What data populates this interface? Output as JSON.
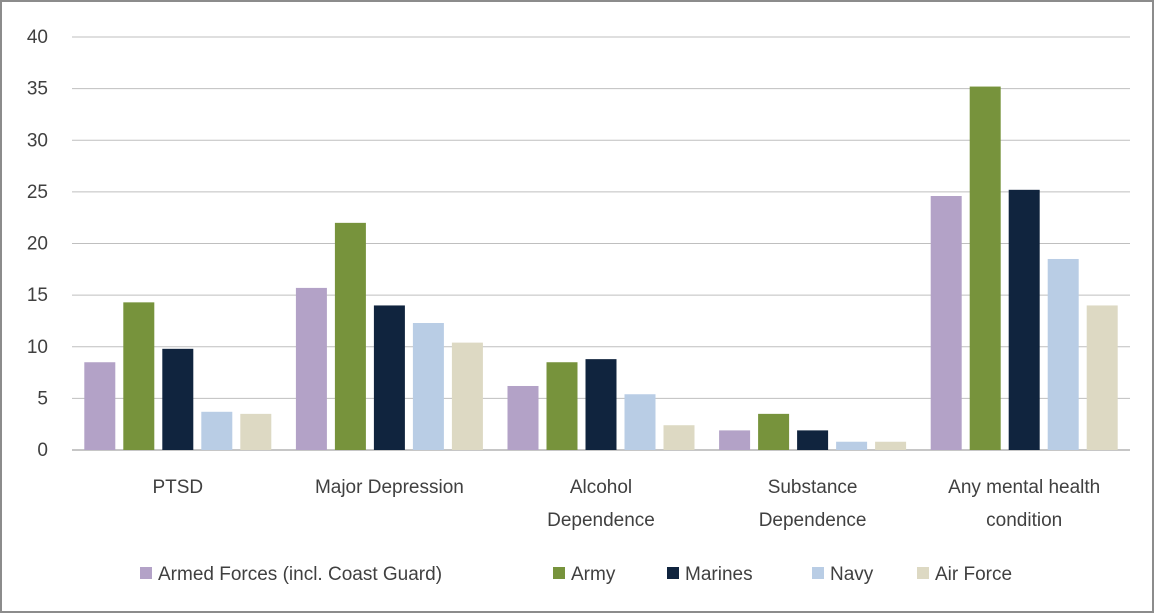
{
  "chart_data": {
    "type": "bar",
    "categories": [
      [
        "PTSD"
      ],
      [
        "Major Depression"
      ],
      [
        "Alcohol",
        "Dependence"
      ],
      [
        "Substance",
        "Dependence"
      ],
      [
        "Any mental health",
        "condition"
      ]
    ],
    "series": [
      {
        "name": "Armed Forces (incl. Coast Guard)",
        "color": "#b3a2c7",
        "values": [
          8.5,
          15.7,
          6.2,
          1.9,
          24.6
        ]
      },
      {
        "name": "Army",
        "color": "#77933c",
        "values": [
          14.3,
          22.0,
          8.5,
          3.5,
          35.2
        ]
      },
      {
        "name": "Marines",
        "color": "#10243e",
        "values": [
          9.8,
          14.0,
          8.8,
          1.9,
          25.2
        ]
      },
      {
        "name": "Navy",
        "color": "#b9cde5",
        "values": [
          3.7,
          12.3,
          5.4,
          0.8,
          18.5
        ]
      },
      {
        "name": "Air Force",
        "color": "#ddd9c3",
        "values": [
          3.5,
          10.4,
          2.4,
          0.8,
          14.0
        ]
      }
    ],
    "yticks": [
      0,
      5,
      10,
      15,
      20,
      25,
      30,
      35,
      40
    ],
    "ylim": [
      0,
      40
    ],
    "grid": true,
    "legend_position": "bottom"
  }
}
